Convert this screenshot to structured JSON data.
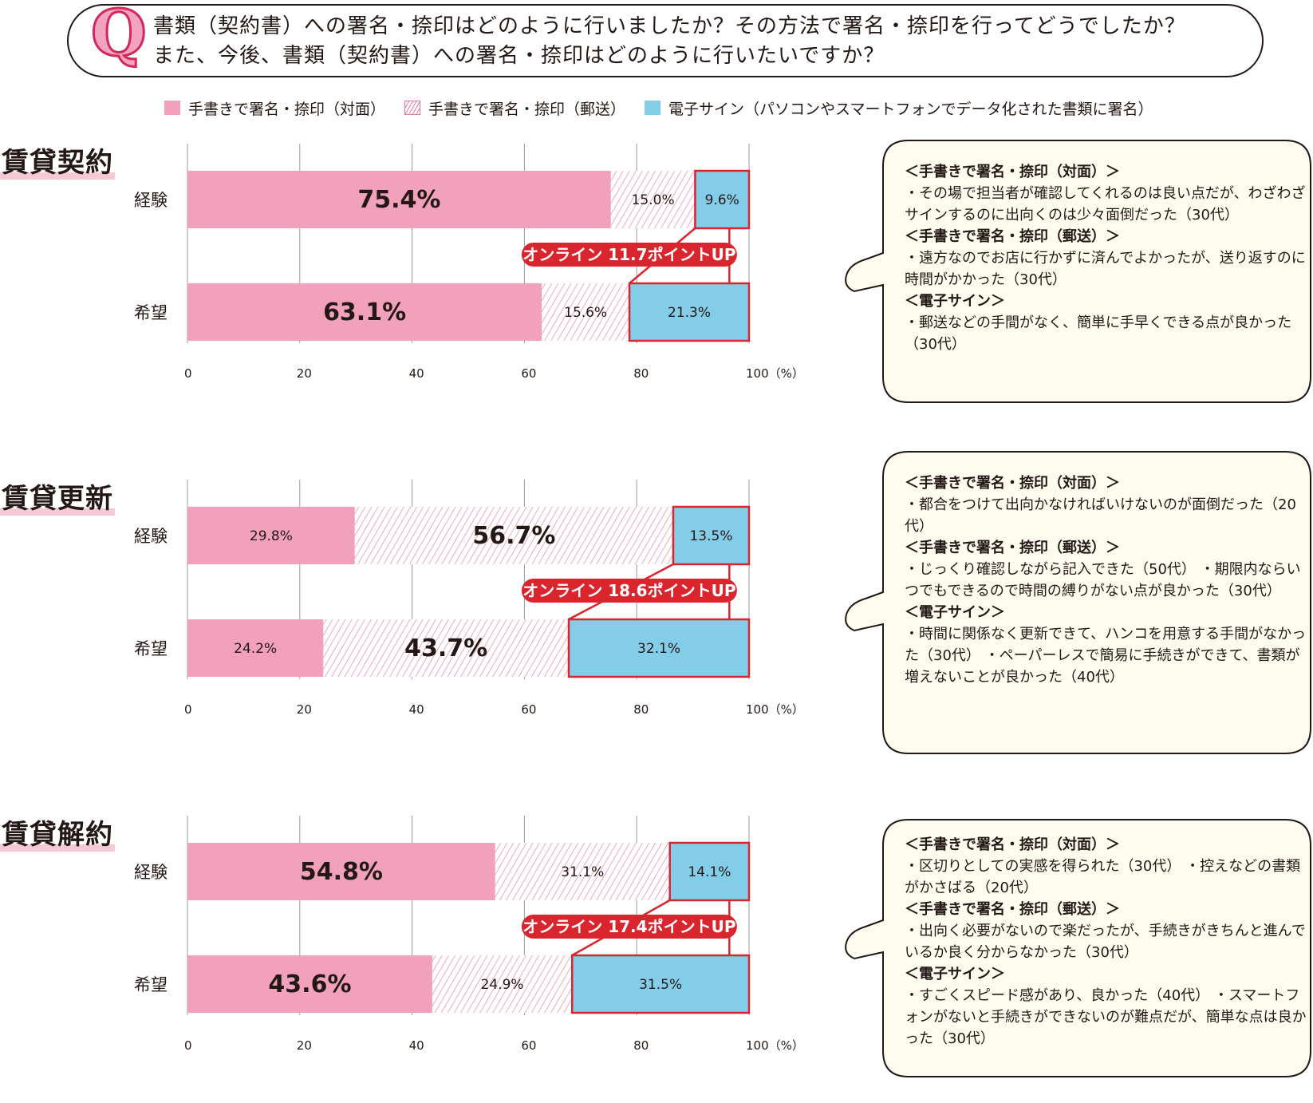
{
  "question": {
    "mark": "Q",
    "line1": "書類（契約書）への署名・捺印はどのように行いましたか？その方法で署名・捺印を行ってどうでしたか？",
    "line2": "また、今後、書類（契約書）への署名・捺印はどのように行いたいですか？"
  },
  "legend": [
    {
      "label": "手書きで署名・捺印（対面）"
    },
    {
      "label": "手書きで署名・捺印（郵送）"
    },
    {
      "label": "電子サイン（パソコンやスマートフォンでデータ化された書類に署名）"
    }
  ],
  "colors": {
    "f2f": "#f2a1bc",
    "mail_line": "#e57a9c",
    "esig": "#84cde8",
    "accent": "#d9252e",
    "grid": "#9a9a9a",
    "bubble_bg": "#fdfcef"
  },
  "chart_data": [
    {
      "type": "bar",
      "orientation": "horizontal",
      "stacked": true,
      "title": "賃貸契約",
      "categories": [
        "経験",
        "希望"
      ],
      "series": [
        {
          "name": "手書きで署名・捺印（対面）",
          "values": [
            75.4,
            63.1
          ],
          "labels": [
            "75.4%",
            "63.1%"
          ]
        },
        {
          "name": "手書きで署名・捺印（郵送）",
          "values": [
            15.0,
            15.6
          ],
          "labels": [
            "15.0%",
            "15.6%"
          ]
        },
        {
          "name": "電子サイン",
          "values": [
            9.6,
            21.3
          ],
          "labels": [
            "9.6%",
            "21.3%"
          ]
        }
      ],
      "bold_series": [
        0,
        0
      ],
      "xlim": [
        0,
        100
      ],
      "xticks": [
        "0",
        "20",
        "40",
        "60",
        "80",
        "100（%）"
      ],
      "callout": "オンライン 11.7ポイントUP",
      "comments": [
        {
          "head": "＜手書きで署名・捺印（対面）＞",
          "text": "・その場で担当者が確認してくれるのは良い点だが、わざわざサインするのに出向くのは少々面倒だった（30代）"
        },
        {
          "head": "＜手書きで署名・捺印（郵送）＞",
          "text": "・遠方なのでお店に行かずに済んでよかったが、送り返すのに時間がかかった（30代）"
        },
        {
          "head": "＜電子サイン＞",
          "text": "・郵送などの手間がなく、簡単に手早くできる点が良かった（30代）"
        }
      ]
    },
    {
      "type": "bar",
      "orientation": "horizontal",
      "stacked": true,
      "title": "賃貸更新",
      "categories": [
        "経験",
        "希望"
      ],
      "series": [
        {
          "name": "手書きで署名・捺印（対面）",
          "values": [
            29.8,
            24.2
          ],
          "labels": [
            "29.8%",
            "24.2%"
          ]
        },
        {
          "name": "手書きで署名・捺印（郵送）",
          "values": [
            56.7,
            43.7
          ],
          "labels": [
            "56.7%",
            "43.7%"
          ]
        },
        {
          "name": "電子サイン",
          "values": [
            13.5,
            32.1
          ],
          "labels": [
            "13.5%",
            "32.1%"
          ]
        }
      ],
      "bold_series": [
        1,
        1
      ],
      "xlim": [
        0,
        100
      ],
      "xticks": [
        "0",
        "20",
        "40",
        "60",
        "80",
        "100（%）"
      ],
      "callout": "オンライン 18.6ポイントUP",
      "comments": [
        {
          "head": "＜手書きで署名・捺印（対面）＞",
          "text": "・都合をつけて出向かなければいけないのが面倒だった（20代）"
        },
        {
          "head": "＜手書きで署名・捺印（郵送）＞",
          "text": "・じっくり確認しながら記入できた（50代）\n・期限内ならいつでもできるので時間の縛りがない点が良かった（30代）"
        },
        {
          "head": "＜電子サイン＞",
          "text": "・時間に関係なく更新できて、ハンコを用意する手間がなかった（30代）\n・ペーパーレスで簡易に手続きができて、書類が増えないことが良かった（40代）"
        }
      ]
    },
    {
      "type": "bar",
      "orientation": "horizontal",
      "stacked": true,
      "title": "賃貸解約",
      "categories": [
        "経験",
        "希望"
      ],
      "series": [
        {
          "name": "手書きで署名・捺印（対面）",
          "values": [
            54.8,
            43.6
          ],
          "labels": [
            "54.8%",
            "43.6%"
          ]
        },
        {
          "name": "手書きで署名・捺印（郵送）",
          "values": [
            31.1,
            24.9
          ],
          "labels": [
            "31.1%",
            "24.9%"
          ]
        },
        {
          "name": "電子サイン",
          "values": [
            14.1,
            31.5
          ],
          "labels": [
            "14.1%",
            "31.5%"
          ]
        }
      ],
      "bold_series": [
        0,
        0
      ],
      "xlim": [
        0,
        100
      ],
      "xticks": [
        "0",
        "20",
        "40",
        "60",
        "80",
        "100（%）"
      ],
      "callout": "オンライン 17.4ポイントUP",
      "comments": [
        {
          "head": "＜手書きで署名・捺印（対面）＞",
          "text": "・区切りとしての実感を得られた（30代）\n・控えなどの書類がかさばる（20代）"
        },
        {
          "head": "＜手書きで署名・捺印（郵送）＞",
          "text": "・出向く必要がないので楽だったが、手続きがきちんと進んでいるか良く分からなかった（30代）"
        },
        {
          "head": "＜電子サイン＞",
          "text": "・すごくスピード感があり、良かった（40代）\n・スマートフォンがないと手続きができないのが難点だが、簡単な点は良かった（30代）"
        }
      ]
    }
  ]
}
